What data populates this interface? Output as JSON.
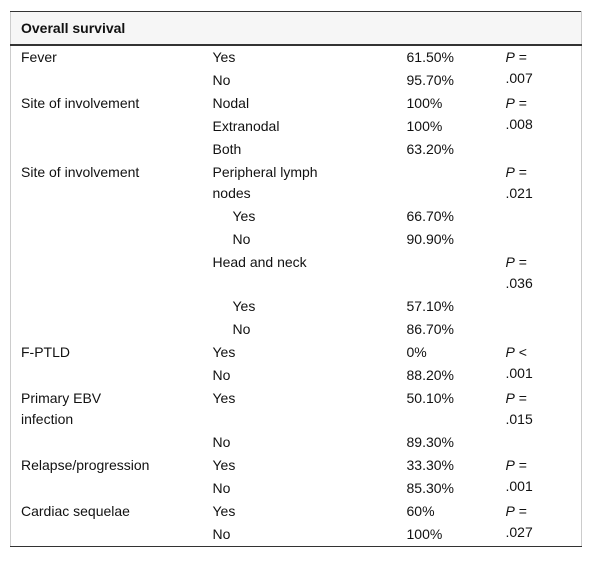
{
  "table": {
    "title": "Overall survival",
    "groups": [
      {
        "label": "Fever",
        "p": {
          "symbol": "P",
          "text": "= .007"
        },
        "rows": [
          {
            "option": "Yes",
            "value": "61.50%"
          },
          {
            "option": "No",
            "value": "95.70%"
          }
        ]
      },
      {
        "label": "Site of involvement",
        "p": {
          "symbol": "P",
          "text": "= .008"
        },
        "rows": [
          {
            "option": "Nodal",
            "value": "100%"
          },
          {
            "option": "Extranodal",
            "value": "100%"
          },
          {
            "option": "Both",
            "value": "63.20%"
          }
        ]
      },
      {
        "label": "Site of involvement",
        "subgroups": [
          {
            "option": "Peripheral lymph nodes",
            "p": {
              "symbol": "P",
              "text": "= .021"
            },
            "rows": [
              {
                "option": "Yes",
                "value": "66.70%"
              },
              {
                "option": "No",
                "value": "90.90%"
              }
            ]
          },
          {
            "option": "Head and neck",
            "p": {
              "symbol": "P",
              "text": "= .036"
            },
            "rows": [
              {
                "option": "Yes",
                "value": "57.10%"
              },
              {
                "option": "No",
                "value": "86.70%"
              }
            ]
          }
        ]
      },
      {
        "label": "F-PTLD",
        "p": {
          "symbol": "P",
          "text": "< .001"
        },
        "rows": [
          {
            "option": "Yes",
            "value": "0%"
          },
          {
            "option": "No",
            "value": "88.20%"
          }
        ]
      },
      {
        "label": "Primary EBV infection",
        "p": {
          "symbol": "P",
          "text": "= .015"
        },
        "rows": [
          {
            "option": "Yes",
            "value": "50.10%"
          },
          {
            "option": "No",
            "value": "89.30%"
          }
        ]
      },
      {
        "label": "Relapse/progression",
        "p": {
          "symbol": "P",
          "text": "= .001"
        },
        "rows": [
          {
            "option": "Yes",
            "value": "33.30%"
          },
          {
            "option": "No",
            "value": "85.30%"
          }
        ]
      },
      {
        "label": "Cardiac sequelae",
        "p": {
          "symbol": "P",
          "text": "= .027"
        },
        "rows": [
          {
            "option": "Yes",
            "value": "60%"
          },
          {
            "option": "No",
            "value": "100%"
          }
        ]
      }
    ]
  }
}
